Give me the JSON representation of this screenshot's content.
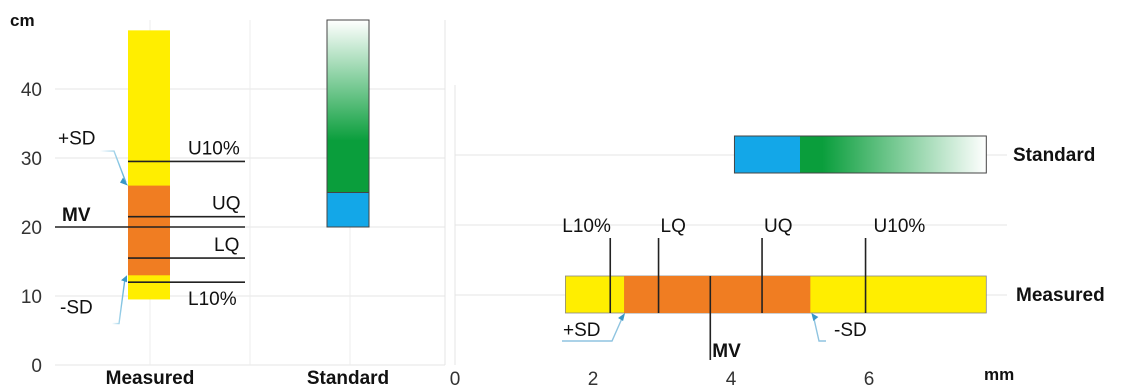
{
  "chart_data": [
    {
      "type": "bar",
      "ylabel": "cm",
      "ylim": [
        0,
        50
      ],
      "yticks": [
        0,
        10,
        20,
        30,
        40
      ],
      "categories": [
        "Measured",
        "Standard"
      ],
      "measured": {
        "full_range": [
          9.5,
          48.5
        ],
        "sd_range": [
          13,
          26
        ],
        "l10": 12,
        "lq": 15.5,
        "mv": 20,
        "uq": 21.5,
        "u10": 29.5,
        "labels": {
          "psd": "+SD",
          "msd": "-SD",
          "mv": "MV",
          "l10": "L10%",
          "lq": "LQ",
          "uq": "UQ",
          "u10": "U10%"
        }
      },
      "standard": {
        "blue_range": [
          20,
          25
        ],
        "green_range": [
          25,
          50
        ]
      },
      "colors": {
        "yellow": "#ffee00",
        "orange": "#f07d22",
        "blue": "#13a7e8",
        "green": "#0a9e3c"
      },
      "grid": true
    },
    {
      "type": "bar",
      "orientation": "horizontal",
      "xlabel": "mm",
      "xlim": [
        0,
        8
      ],
      "xticks": [
        0,
        2,
        4,
        6
      ],
      "categories": [
        "Standard",
        "Measured"
      ],
      "measured": {
        "full_range": [
          1.6,
          7.7
        ],
        "sd_range": [
          2.45,
          5.15
        ],
        "l10": 2.25,
        "lq": 2.95,
        "mv": 3.7,
        "uq": 4.45,
        "u10": 5.95,
        "labels": {
          "psd": "+SD",
          "msd": "-SD",
          "mv": "MV",
          "l10": "L10%",
          "lq": "LQ",
          "uq": "UQ",
          "u10": "U10%"
        }
      },
      "standard": {
        "blue_range": [
          4.05,
          5.0
        ],
        "green_range": [
          5.0,
          7.7
        ]
      },
      "grid": true
    }
  ]
}
